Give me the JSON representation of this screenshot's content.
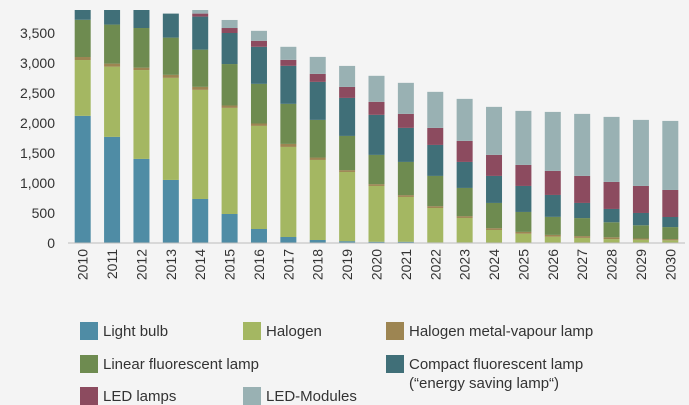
{
  "chart_data": {
    "type": "stacked_bar",
    "categories": [
      "2010",
      "2011",
      "2012",
      "2013",
      "2014",
      "2015",
      "2016",
      "2017",
      "2018",
      "2019",
      "2020",
      "2021",
      "2022",
      "2023",
      "2024",
      "2025",
      "2026",
      "2027",
      "2028",
      "2029",
      "2030"
    ],
    "ylim": [
      0,
      3880
    ],
    "yticks": [
      0,
      500,
      {
        "value": 1000,
        "label": "1,000"
      },
      {
        "value": 1500,
        "label": "1,500"
      },
      {
        "value": 2000,
        "label": "2,000"
      },
      {
        "value": 2500,
        "label": "2,500"
      },
      {
        "value": 3000,
        "label": "3,000"
      },
      {
        "value": 3500,
        "label": "3,500"
      }
    ],
    "grid": false,
    "series": [
      {
        "name": "Light bulb",
        "color": "#4f8ca5",
        "values": [
          2117,
          1767,
          1400,
          1050,
          733,
          483,
          233,
          100,
          50,
          30,
          20,
          20,
          10,
          10,
          5,
          5,
          5,
          5,
          5,
          5,
          5
        ]
      },
      {
        "name": "Halogen",
        "color": "#a4b762",
        "values": [
          930,
          1170,
          1480,
          1700,
          1817,
          1767,
          1717,
          1500,
          1333,
          1153,
          930,
          747,
          573,
          407,
          212,
          150,
          100,
          80,
          60,
          50,
          40
        ]
      },
      {
        "name": "Halogen metal-vapour lamp",
        "color": "#9d8552",
        "values": [
          50,
          50,
          40,
          50,
          50,
          40,
          40,
          50,
          40,
          30,
          30,
          30,
          30,
          30,
          30,
          30,
          30,
          30,
          30,
          20,
          20
        ]
      },
      {
        "name": "Linear fluorescent lamp",
        "color": "#6e8b50",
        "values": [
          620,
          650,
          660,
          620,
          620,
          690,
          660,
          667,
          627,
          570,
          487,
          553,
          504,
          470,
          420,
          332,
          300,
          300,
          250,
          220,
          200
        ]
      },
      {
        "name": "Compact fluorescent lamp\n(“energy saving lamp“)",
        "color": "#406f78",
        "values": [
          200,
          250,
          300,
          400,
          550,
          517,
          617,
          633,
          633,
          633,
          667,
          567,
          516,
          433,
          450,
          433,
          365,
          252,
          222,
          205,
          168
        ]
      },
      {
        "name": "LED lamps",
        "color": "#8c4b5f",
        "values": [
          0,
          0,
          0,
          0,
          50,
          83,
          100,
          100,
          133,
          183,
          217,
          233,
          284,
          350,
          350,
          350,
          400,
          450,
          450,
          450,
          450
        ]
      },
      {
        "name": "LED-Modules",
        "color": "#99b1b3",
        "values": [
          0,
          0,
          0,
          0,
          100,
          134,
          166,
          217,
          283,
          350,
          433,
          517,
          600,
          700,
          800,
          900,
          983,
          1033,
          1083,
          1100,
          1150
        ]
      }
    ]
  }
}
